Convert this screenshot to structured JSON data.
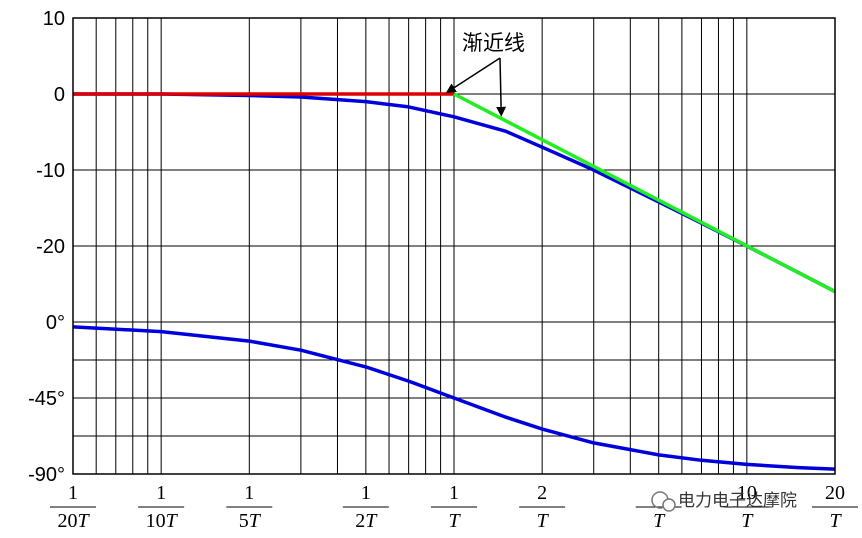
{
  "chart_data": {
    "type": "line",
    "title": "",
    "xscale": "log",
    "xlim": [
      0.05,
      20
    ],
    "x_ticks": [
      {
        "value": 0.05,
        "num": "1",
        "den": "20",
        "var": "T"
      },
      {
        "value": 0.1,
        "num": "1",
        "den": "10",
        "var": "T"
      },
      {
        "value": 0.2,
        "num": "1",
        "den": "5",
        "var": "T"
      },
      {
        "value": 0.5,
        "num": "1",
        "den": "2",
        "var": "T"
      },
      {
        "value": 1,
        "num": "1",
        "den": "",
        "var": "T"
      },
      {
        "value": 2,
        "num": "2",
        "den": "",
        "var": "T"
      },
      {
        "value": 5,
        "num": "",
        "den": "",
        "var": "T"
      },
      {
        "value": 10,
        "num": "10",
        "den": "",
        "var": "T"
      },
      {
        "value": 20,
        "num": "20",
        "den": "",
        "var": "T"
      }
    ],
    "magnitude_panel": {
      "ylim": [
        -30,
        10
      ],
      "y_ticks": [
        {
          "value": 10,
          "label": "10"
        },
        {
          "value": 0,
          "label": "0"
        },
        {
          "value": -10,
          "label": "-10"
        },
        {
          "value": -20,
          "label": "-20"
        }
      ],
      "series": [
        {
          "role": "magnitude",
          "color": "#0000dd",
          "x": [
            0.05,
            0.1,
            0.2,
            0.3,
            0.5,
            0.7,
            1,
            1.5,
            2,
            3,
            5,
            7,
            10,
            15,
            20
          ],
          "y": [
            0,
            0,
            -0.2,
            -0.4,
            -1,
            -1.7,
            -3,
            -4.9,
            -7,
            -10,
            -14.2,
            -17,
            -20,
            -23.5,
            -26
          ]
        },
        {
          "role": "asymptote-low",
          "color": "#dd0000",
          "x": [
            0.05,
            1
          ],
          "y": [
            0,
            0
          ]
        },
        {
          "role": "asymptote-high",
          "color": "#22ee22",
          "x": [
            1,
            20
          ],
          "y": [
            0,
            -26
          ]
        }
      ]
    },
    "phase_panel": {
      "ylim": [
        -90,
        0
      ],
      "y_ticks": [
        {
          "value": 0,
          "label": "0°"
        },
        {
          "value": -45,
          "label": "-45°"
        },
        {
          "value": -90,
          "label": "-90°"
        }
      ],
      "series": [
        {
          "role": "phase",
          "color": "#0000dd",
          "x": [
            0.05,
            0.1,
            0.2,
            0.3,
            0.5,
            0.7,
            1,
            1.5,
            2,
            3,
            5,
            7,
            10,
            15,
            20
          ],
          "y": [
            -2.9,
            -5.7,
            -11.3,
            -16.7,
            -26.6,
            -35,
            -45,
            -56.3,
            -63.4,
            -71.6,
            -78.7,
            -81.9,
            -84.3,
            -86.2,
            -87.1
          ]
        }
      ]
    },
    "annotation": {
      "text": "渐近线",
      "arrow_targets": [
        {
          "x": 0.95,
          "y": 0
        },
        {
          "x": 1.45,
          "y": -3
        }
      ]
    },
    "grid": true
  },
  "watermark": {
    "text": "电力电子达摩院",
    "icon": "wechat-icon"
  }
}
